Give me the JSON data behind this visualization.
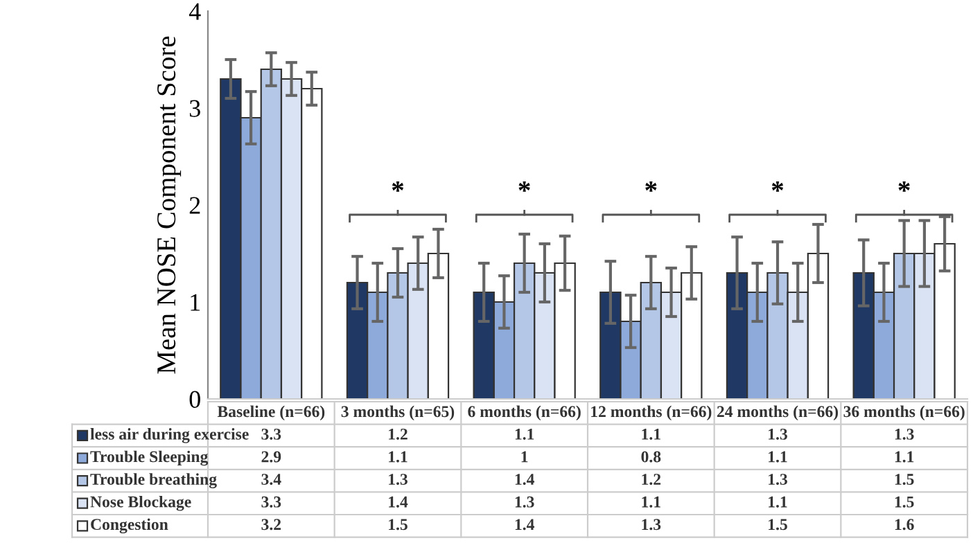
{
  "chart_data": {
    "type": "bar",
    "ylabel": "Mean NOSE Component Score",
    "categories": [
      "Baseline (n=66)",
      "3 months (n=65)",
      "6 months (n=66)",
      "12 months (n=66)",
      "24 months (n=66)",
      "36 months (n=66)"
    ],
    "series": [
      {
        "name": "less air during exercise",
        "color": "#1f3864",
        "values": [
          3.3,
          1.2,
          1.1,
          1.1,
          1.3,
          1.3
        ],
        "errors": [
          0.2,
          0.27,
          0.3,
          0.32,
          0.37,
          0.34
        ]
      },
      {
        "name": "Trouble Sleeping",
        "color": "#8eaadb",
        "values": [
          2.9,
          1.1,
          1,
          0.8,
          1.1,
          1.1
        ],
        "errors": [
          0.27,
          0.3,
          0.27,
          0.27,
          0.3,
          0.3
        ]
      },
      {
        "name": "Trouble breathing",
        "color": "#b4c7e7",
        "values": [
          3.4,
          1.3,
          1.4,
          1.2,
          1.3,
          1.5
        ],
        "errors": [
          0.17,
          0.25,
          0.3,
          0.27,
          0.32,
          0.34
        ]
      },
      {
        "name": "Nose Blockage",
        "color": "#dae3f3",
        "values": [
          3.3,
          1.4,
          1.3,
          1.1,
          1.1,
          1.5
        ],
        "errors": [
          0.17,
          0.27,
          0.3,
          0.25,
          0.3,
          0.34
        ]
      },
      {
        "name": "Congestion",
        "color": "#ffffff",
        "values": [
          3.2,
          1.5,
          1.4,
          1.3,
          1.5,
          1.6
        ],
        "errors": [
          0.17,
          0.25,
          0.28,
          0.27,
          0.3,
          0.28
        ]
      }
    ],
    "ylim": [
      0,
      4
    ],
    "yticks": [
      0,
      1,
      2,
      3,
      4
    ],
    "grid": false,
    "data_labels": true,
    "legend": "bottom left",
    "annotations": [
      "*",
      "*",
      "*",
      "*",
      "*"
    ]
  }
}
